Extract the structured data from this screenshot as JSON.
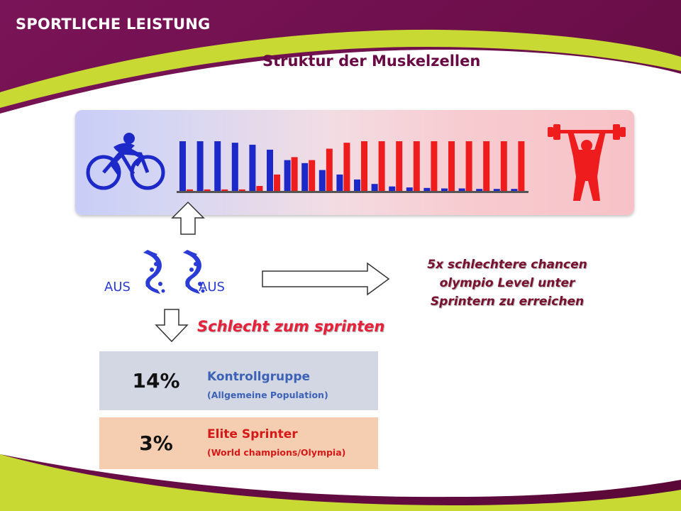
{
  "header": {
    "section_title": "SPORTLICHE LEISTUNG"
  },
  "slide": {
    "title": "Struktur der Muskelzellen"
  },
  "fiber_chart": {
    "icons": {
      "left": "cyclist-icon",
      "right": "weightlifter-icon"
    },
    "colors": {
      "blue": "#1c28c8",
      "red": "#ee1c1c"
    },
    "bars": [
      {
        "blue": 1.0,
        "red": 0.03
      },
      {
        "blue": 1.0,
        "red": 0.03
      },
      {
        "blue": 1.0,
        "red": 0.03
      },
      {
        "blue": 0.97,
        "red": 0.03
      },
      {
        "blue": 0.93,
        "red": 0.1
      },
      {
        "blue": 0.83,
        "red": 0.33
      },
      {
        "blue": 0.62,
        "red": 0.68
      },
      {
        "blue": 0.56,
        "red": 0.62
      },
      {
        "blue": 0.42,
        "red": 0.85
      },
      {
        "blue": 0.33,
        "red": 0.97
      },
      {
        "blue": 0.23,
        "red": 1.0
      },
      {
        "blue": 0.14,
        "red": 1.0
      },
      {
        "blue": 0.09,
        "red": 1.0
      },
      {
        "blue": 0.07,
        "red": 1.0
      },
      {
        "blue": 0.06,
        "red": 1.0
      },
      {
        "blue": 0.05,
        "red": 1.0
      },
      {
        "blue": 0.05,
        "red": 1.0
      },
      {
        "blue": 0.04,
        "red": 1.0
      },
      {
        "blue": 0.04,
        "red": 1.0
      },
      {
        "blue": 0.04,
        "red": 1.0
      }
    ]
  },
  "gene": {
    "left_label": "AUS",
    "right_label": "AUS",
    "icon": "dna-strand-icon"
  },
  "chance_text": {
    "line1": "5x schlechtere chancen",
    "line2": "olympio Level unter",
    "line3": "Sprintern zu erreichen"
  },
  "bad_sprint": "Schlecht zum sprinten",
  "rows": [
    {
      "percent": "14%",
      "label": "Kontrollgruppe",
      "sublabel": "(Allgemeine Population)",
      "color": "#3b62b6",
      "bg": "#d3d7e4"
    },
    {
      "percent": "3%",
      "label": "Elite Sprinter",
      "sublabel": "(World champions/Olympia)",
      "color": "#d61818",
      "bg": "#f5cdb0"
    }
  ]
}
